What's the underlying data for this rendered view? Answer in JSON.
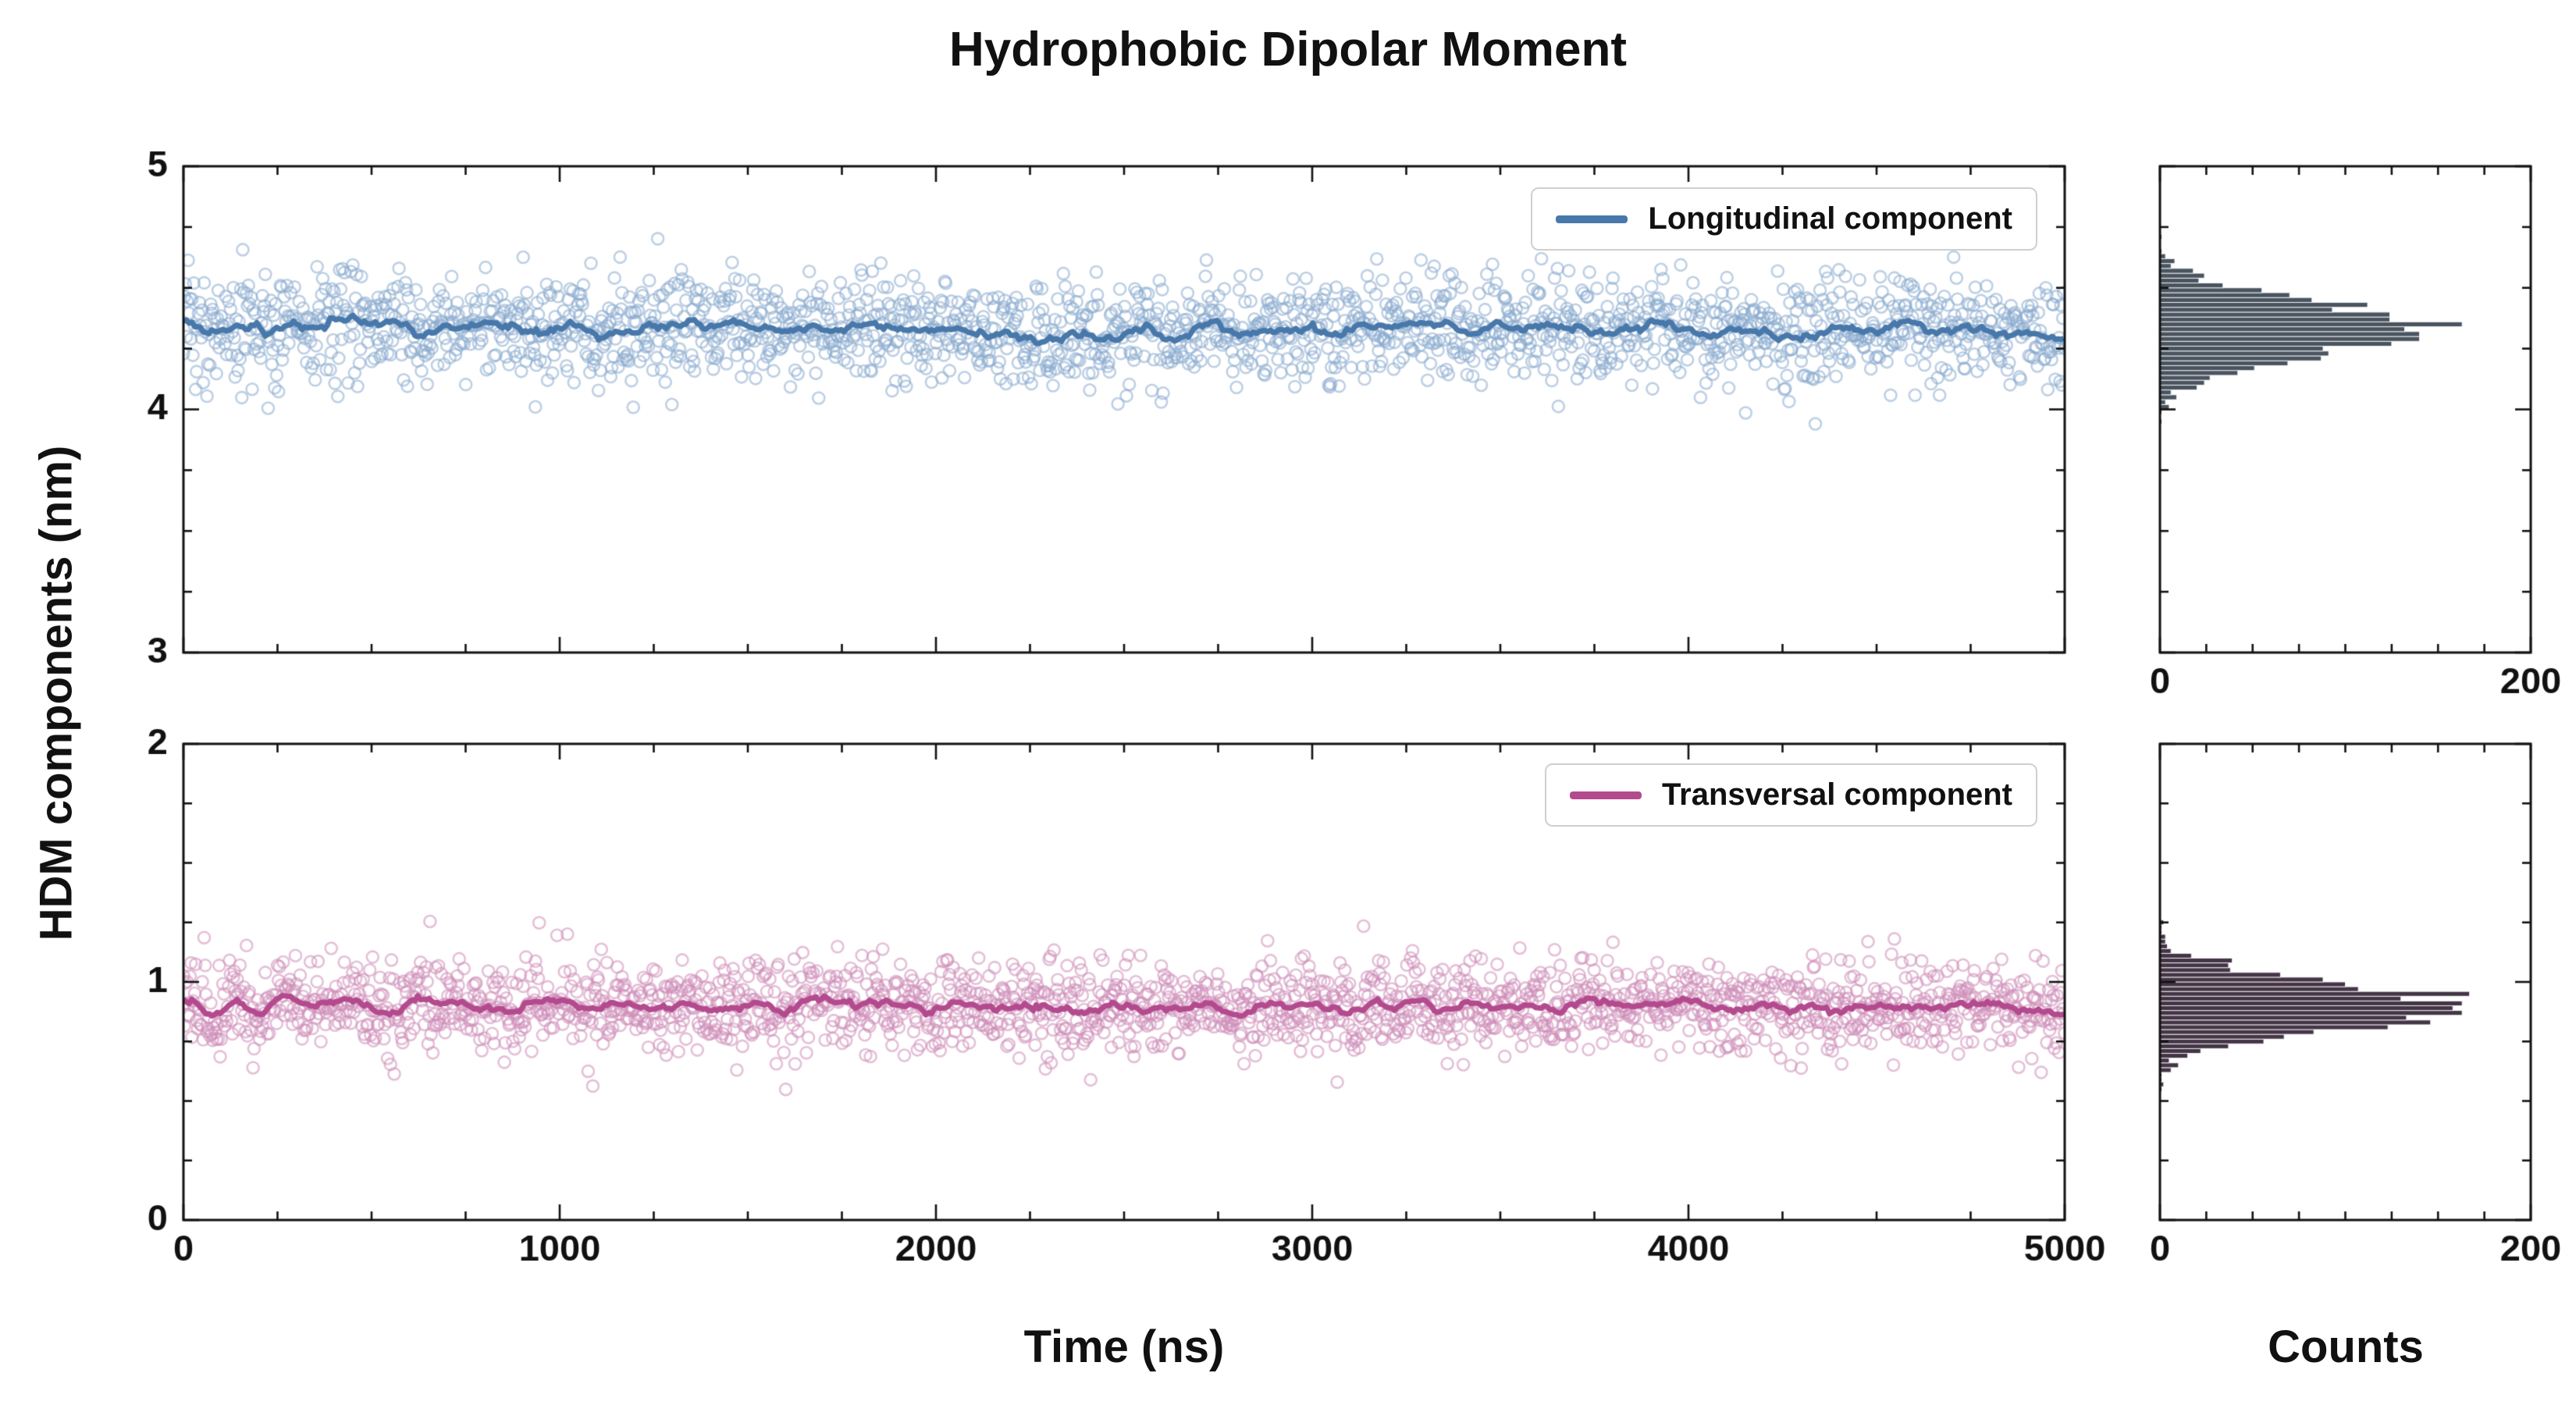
{
  "title": "Hydrophobic Dipolar Moment",
  "ylabel": "HDM components (nm)",
  "xlabel": "Time (ns)",
  "hist_xlabel": "Counts",
  "chart_data": [
    {
      "type": "scatter",
      "panel": "top",
      "name": "Longitudinal component",
      "legend": {
        "label": "Longitudinal component",
        "position": "upper right"
      },
      "xlim": [
        0,
        5000
      ],
      "ylim": [
        3,
        5
      ],
      "xticks": [
        0,
        1000,
        2000,
        3000,
        4000,
        5000
      ],
      "yticks": [
        3,
        4,
        5
      ],
      "x_minor_step": 250,
      "y_minor_step": 0.25,
      "mean": 4.33,
      "std": 0.11,
      "n_points": 2000,
      "trend_window": 15,
      "colors": {
        "scatter": "#88a9ce",
        "line": "#4878aa"
      },
      "show_x_tick_labels": false
    },
    {
      "type": "scatter",
      "panel": "bottom",
      "name": "Transversal component",
      "legend": {
        "label": "Transversal component",
        "position": "upper right"
      },
      "xlim": [
        0,
        5000
      ],
      "ylim": [
        0,
        2
      ],
      "xticks": [
        0,
        1000,
        2000,
        3000,
        4000,
        5000
      ],
      "yticks": [
        0,
        1,
        2
      ],
      "x_minor_step": 250,
      "y_minor_step": 0.25,
      "mean": 0.9,
      "std": 0.1,
      "n_points": 2000,
      "trend_window": 15,
      "colors": {
        "scatter": "#cd8cb8",
        "line": "#b44a8e"
      },
      "show_x_tick_labels": true
    },
    {
      "type": "histogram",
      "panel": "top-right",
      "orientation": "horizontal",
      "source_series": "Longitudinal component",
      "xlim": [
        0,
        200
      ],
      "xticks": [
        0,
        200
      ],
      "x_minor_step": 25,
      "ylim": [
        3,
        5
      ],
      "yticks": [
        3,
        4,
        5
      ],
      "y_minor_step": 0.25,
      "bin_width": 0.02,
      "center": 4.33,
      "peak_counts": 150,
      "color": "#49545f",
      "show_x_tick_labels": true
    },
    {
      "type": "histogram",
      "panel": "bottom-right",
      "orientation": "horizontal",
      "source_series": "Transversal component",
      "xlim": [
        0,
        200
      ],
      "xticks": [
        0,
        200
      ],
      "x_minor_step": 25,
      "ylim": [
        0,
        2
      ],
      "yticks": [
        0,
        1,
        2
      ],
      "y_minor_step": 0.25,
      "bin_width": 0.02,
      "center": 0.9,
      "peak_counts": 160,
      "color": "#443546",
      "show_x_tick_labels": true
    }
  ],
  "axis_color": "#111111"
}
